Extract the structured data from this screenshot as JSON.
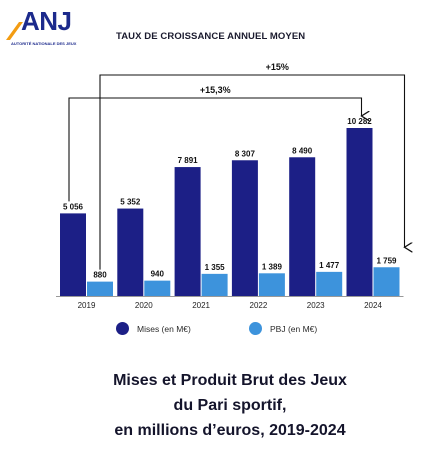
{
  "logo": {
    "text": "ANJ",
    "subtext": "AUTORITÉ NATIONALE DES JEUX"
  },
  "chart_data": {
    "type": "bar",
    "title": "TAUX DE CROISSANCE ANNUEL MOYEN",
    "categories": [
      "2019",
      "2020",
      "2021",
      "2022",
      "2023",
      "2024"
    ],
    "series": [
      {
        "name": "Mises (en M€)",
        "color": "#1c1f86",
        "values": [
          5056,
          5352,
          7891,
          8307,
          8490,
          10282
        ],
        "labels": [
          "5 056",
          "5 352",
          "7 891",
          "8 307",
          "8 490",
          "10 282"
        ]
      },
      {
        "name": "PBJ (en M€)",
        "color": "#3d93dc",
        "values": [
          880,
          940,
          1355,
          1389,
          1477,
          1759
        ],
        "labels": [
          "880",
          "940",
          "1 355",
          "1 389",
          "1 477",
          "1 759"
        ]
      }
    ],
    "annotations": [
      {
        "text": "+15%",
        "from": "2019",
        "to": "2024",
        "series": "PBJ (en M€)"
      },
      {
        "text": "+15,3%",
        "from": "2019",
        "to": "2024",
        "series": "Mises (en M€)"
      }
    ],
    "ylim": [
      0,
      10282
    ],
    "grid": false,
    "legend_position": "bottom"
  },
  "caption": {
    "line1": "Mises et Produit Brut des Jeux",
    "line2": "du Pari sportif,",
    "line3": "en millions d’euros, 2019-2024"
  }
}
